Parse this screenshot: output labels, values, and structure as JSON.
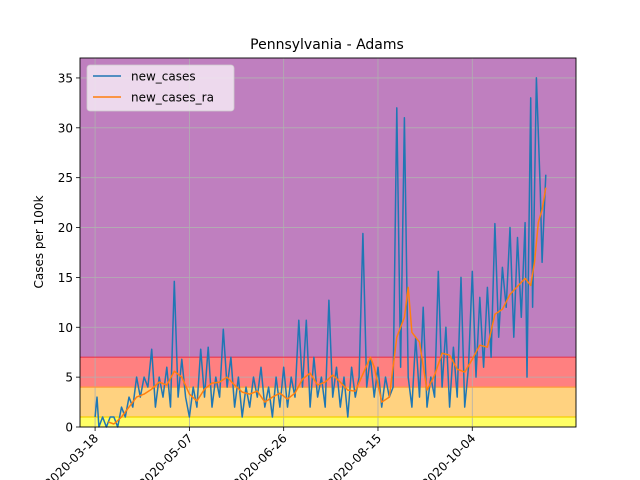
{
  "chart_data": {
    "type": "line",
    "title": "Pennsylvania - Adams",
    "xlabel": "",
    "ylabel": "Cases per 100k",
    "xlim": [
      "2020-03-10",
      "2020-11-28"
    ],
    "ylim": [
      0,
      37
    ],
    "x_ticks": [
      "2020-03-18",
      "2020-05-07",
      "2020-06-26",
      "2020-08-15",
      "2020-10-04"
    ],
    "y_ticks": [
      0,
      5,
      10,
      15,
      20,
      25,
      30,
      35
    ],
    "grid": true,
    "legend_position": "top-left",
    "bands": [
      {
        "from": 0,
        "to": 1,
        "color": "#ffff66"
      },
      {
        "from": 1,
        "to": 4,
        "color": "#ffd280"
      },
      {
        "from": 4,
        "to": 7,
        "color": "#ff8080"
      },
      {
        "from": 7,
        "to": 37,
        "color": "#bf7fbf"
      }
    ],
    "threshold_lines": [
      {
        "y": 1,
        "color": "#f4d000"
      },
      {
        "y": 4,
        "color": "#ff9a3a"
      },
      {
        "y": 7,
        "color": "#e8384f"
      }
    ],
    "series": [
      {
        "name": "new_cases",
        "color": "#1f77b4",
        "points": [
          [
            "2020-03-18",
            1
          ],
          [
            "2020-03-19",
            3
          ],
          [
            "2020-03-20",
            0
          ],
          [
            "2020-03-22",
            1
          ],
          [
            "2020-03-24",
            0
          ],
          [
            "2020-03-26",
            1
          ],
          [
            "2020-03-28",
            1
          ],
          [
            "2020-03-30",
            0
          ],
          [
            "2020-04-01",
            2
          ],
          [
            "2020-04-03",
            1
          ],
          [
            "2020-04-05",
            3
          ],
          [
            "2020-04-07",
            2
          ],
          [
            "2020-04-09",
            5
          ],
          [
            "2020-04-11",
            3
          ],
          [
            "2020-04-13",
            5
          ],
          [
            "2020-04-15",
            4
          ],
          [
            "2020-04-17",
            7.8
          ],
          [
            "2020-04-19",
            2
          ],
          [
            "2020-04-21",
            5
          ],
          [
            "2020-04-23",
            3
          ],
          [
            "2020-04-25",
            6
          ],
          [
            "2020-04-27",
            2
          ],
          [
            "2020-04-29",
            14.6
          ],
          [
            "2020-05-01",
            3
          ],
          [
            "2020-05-03",
            6.8
          ],
          [
            "2020-05-05",
            3
          ],
          [
            "2020-05-07",
            1
          ],
          [
            "2020-05-09",
            4
          ],
          [
            "2020-05-11",
            2
          ],
          [
            "2020-05-13",
            7.8
          ],
          [
            "2020-05-15",
            3
          ],
          [
            "2020-05-17",
            8
          ],
          [
            "2020-05-19",
            2
          ],
          [
            "2020-05-21",
            5
          ],
          [
            "2020-05-23",
            3
          ],
          [
            "2020-05-25",
            9.8
          ],
          [
            "2020-05-27",
            4
          ],
          [
            "2020-05-29",
            7
          ],
          [
            "2020-05-31",
            2
          ],
          [
            "2020-06-02",
            5
          ],
          [
            "2020-06-04",
            1
          ],
          [
            "2020-06-06",
            4
          ],
          [
            "2020-06-08",
            2
          ],
          [
            "2020-06-10",
            5
          ],
          [
            "2020-06-12",
            3
          ],
          [
            "2020-06-14",
            6
          ],
          [
            "2020-06-16",
            2
          ],
          [
            "2020-06-18",
            4
          ],
          [
            "2020-06-20",
            1
          ],
          [
            "2020-06-22",
            5
          ],
          [
            "2020-06-24",
            2
          ],
          [
            "2020-06-26",
            6
          ],
          [
            "2020-06-28",
            2
          ],
          [
            "2020-06-30",
            5
          ],
          [
            "2020-07-02",
            3
          ],
          [
            "2020-07-04",
            10.7
          ],
          [
            "2020-07-06",
            4
          ],
          [
            "2020-07-08",
            10.7
          ],
          [
            "2020-07-10",
            2
          ],
          [
            "2020-07-12",
            7
          ],
          [
            "2020-07-14",
            3
          ],
          [
            "2020-07-16",
            5
          ],
          [
            "2020-07-18",
            2
          ],
          [
            "2020-07-20",
            12.7
          ],
          [
            "2020-07-22",
            3
          ],
          [
            "2020-07-24",
            6
          ],
          [
            "2020-07-26",
            2
          ],
          [
            "2020-07-28",
            5
          ],
          [
            "2020-07-30",
            1
          ],
          [
            "2020-08-01",
            6
          ],
          [
            "2020-08-03",
            3
          ],
          [
            "2020-08-05",
            5
          ],
          [
            "2020-08-07",
            19.4
          ],
          [
            "2020-08-09",
            4
          ],
          [
            "2020-08-11",
            7
          ],
          [
            "2020-08-13",
            3
          ],
          [
            "2020-08-15",
            6
          ],
          [
            "2020-08-17",
            2
          ],
          [
            "2020-08-19",
            5
          ],
          [
            "2020-08-21",
            3
          ],
          [
            "2020-08-23",
            4
          ],
          [
            "2020-08-25",
            32
          ],
          [
            "2020-08-27",
            6
          ],
          [
            "2020-08-29",
            31
          ],
          [
            "2020-08-31",
            5
          ],
          [
            "2020-09-02",
            2
          ],
          [
            "2020-09-04",
            9
          ],
          [
            "2020-09-06",
            3
          ],
          [
            "2020-09-08",
            12
          ],
          [
            "2020-09-10",
            2
          ],
          [
            "2020-09-12",
            5
          ],
          [
            "2020-09-14",
            3
          ],
          [
            "2020-09-16",
            15.6
          ],
          [
            "2020-09-18",
            4
          ],
          [
            "2020-09-20",
            10
          ],
          [
            "2020-09-22",
            2
          ],
          [
            "2020-09-24",
            8
          ],
          [
            "2020-09-26",
            3
          ],
          [
            "2020-09-28",
            15
          ],
          [
            "2020-09-30",
            2
          ],
          [
            "2020-10-02",
            6
          ],
          [
            "2020-10-04",
            15.6
          ],
          [
            "2020-10-06",
            5
          ],
          [
            "2020-10-08",
            13
          ],
          [
            "2020-10-10",
            6
          ],
          [
            "2020-10-12",
            14
          ],
          [
            "2020-10-14",
            7
          ],
          [
            "2020-10-16",
            20.4
          ],
          [
            "2020-10-18",
            9
          ],
          [
            "2020-10-20",
            16
          ],
          [
            "2020-10-22",
            12
          ],
          [
            "2020-10-24",
            20
          ],
          [
            "2020-10-26",
            9
          ],
          [
            "2020-10-28",
            19
          ],
          [
            "2020-10-30",
            11
          ],
          [
            "2020-11-01",
            20.5
          ],
          [
            "2020-11-02",
            5
          ],
          [
            "2020-11-04",
            33
          ],
          [
            "2020-11-05",
            12
          ],
          [
            "2020-11-07",
            35
          ],
          [
            "2020-11-09",
            24
          ],
          [
            "2020-11-10",
            16.5
          ],
          [
            "2020-11-11",
            21
          ],
          [
            "2020-11-12",
            25.3
          ]
        ]
      },
      {
        "name": "new_cases_ra",
        "color": "#ff7f0e",
        "points": [
          [
            "2020-03-25",
            0.5
          ],
          [
            "2020-03-28",
            0.3
          ],
          [
            "2020-04-01",
            1
          ],
          [
            "2020-04-05",
            2
          ],
          [
            "2020-04-09",
            3
          ],
          [
            "2020-04-13",
            3.3
          ],
          [
            "2020-04-17",
            3.8
          ],
          [
            "2020-04-21",
            4.5
          ],
          [
            "2020-04-25",
            4.2
          ],
          [
            "2020-04-29",
            5.6
          ],
          [
            "2020-05-03",
            5
          ],
          [
            "2020-05-07",
            3.3
          ],
          [
            "2020-05-11",
            2.6
          ],
          [
            "2020-05-15",
            3.8
          ],
          [
            "2020-05-19",
            4.4
          ],
          [
            "2020-05-23",
            4.5
          ],
          [
            "2020-05-27",
            5
          ],
          [
            "2020-05-31",
            4.2
          ],
          [
            "2020-06-04",
            3.5
          ],
          [
            "2020-06-08",
            3.3
          ],
          [
            "2020-06-12",
            3.6
          ],
          [
            "2020-06-16",
            2.5
          ],
          [
            "2020-06-20",
            3
          ],
          [
            "2020-06-24",
            3.4
          ],
          [
            "2020-06-28",
            2.8
          ],
          [
            "2020-07-02",
            3.4
          ],
          [
            "2020-07-06",
            4.8
          ],
          [
            "2020-07-10",
            5.4
          ],
          [
            "2020-07-14",
            4.2
          ],
          [
            "2020-07-18",
            4.5
          ],
          [
            "2020-07-22",
            5.2
          ],
          [
            "2020-07-26",
            4.5
          ],
          [
            "2020-07-30",
            3.7
          ],
          [
            "2020-08-03",
            3.6
          ],
          [
            "2020-08-07",
            5.3
          ],
          [
            "2020-08-11",
            7
          ],
          [
            "2020-08-13",
            6
          ],
          [
            "2020-08-15",
            4.3
          ],
          [
            "2020-08-17",
            2.5
          ],
          [
            "2020-08-21",
            3
          ],
          [
            "2020-08-25",
            9
          ],
          [
            "2020-08-29",
            11
          ],
          [
            "2020-08-31",
            14
          ],
          [
            "2020-09-02",
            9.5
          ],
          [
            "2020-09-06",
            8.5
          ],
          [
            "2020-09-10",
            3.7
          ],
          [
            "2020-09-14",
            5.2
          ],
          [
            "2020-09-18",
            7.4
          ],
          [
            "2020-09-22",
            7.2
          ],
          [
            "2020-09-26",
            5.8
          ],
          [
            "2020-09-30",
            5.5
          ],
          [
            "2020-10-04",
            6.8
          ],
          [
            "2020-10-08",
            8.2
          ],
          [
            "2020-10-12",
            8
          ],
          [
            "2020-10-16",
            11.3
          ],
          [
            "2020-10-20",
            11.8
          ],
          [
            "2020-10-24",
            13.3
          ],
          [
            "2020-10-28",
            14.1
          ],
          [
            "2020-11-01",
            14.9
          ],
          [
            "2020-11-04",
            14.2
          ],
          [
            "2020-11-06",
            16.5
          ],
          [
            "2020-11-08",
            20.5
          ],
          [
            "2020-11-10",
            21.8
          ],
          [
            "2020-11-12",
            24
          ]
        ]
      }
    ]
  }
}
